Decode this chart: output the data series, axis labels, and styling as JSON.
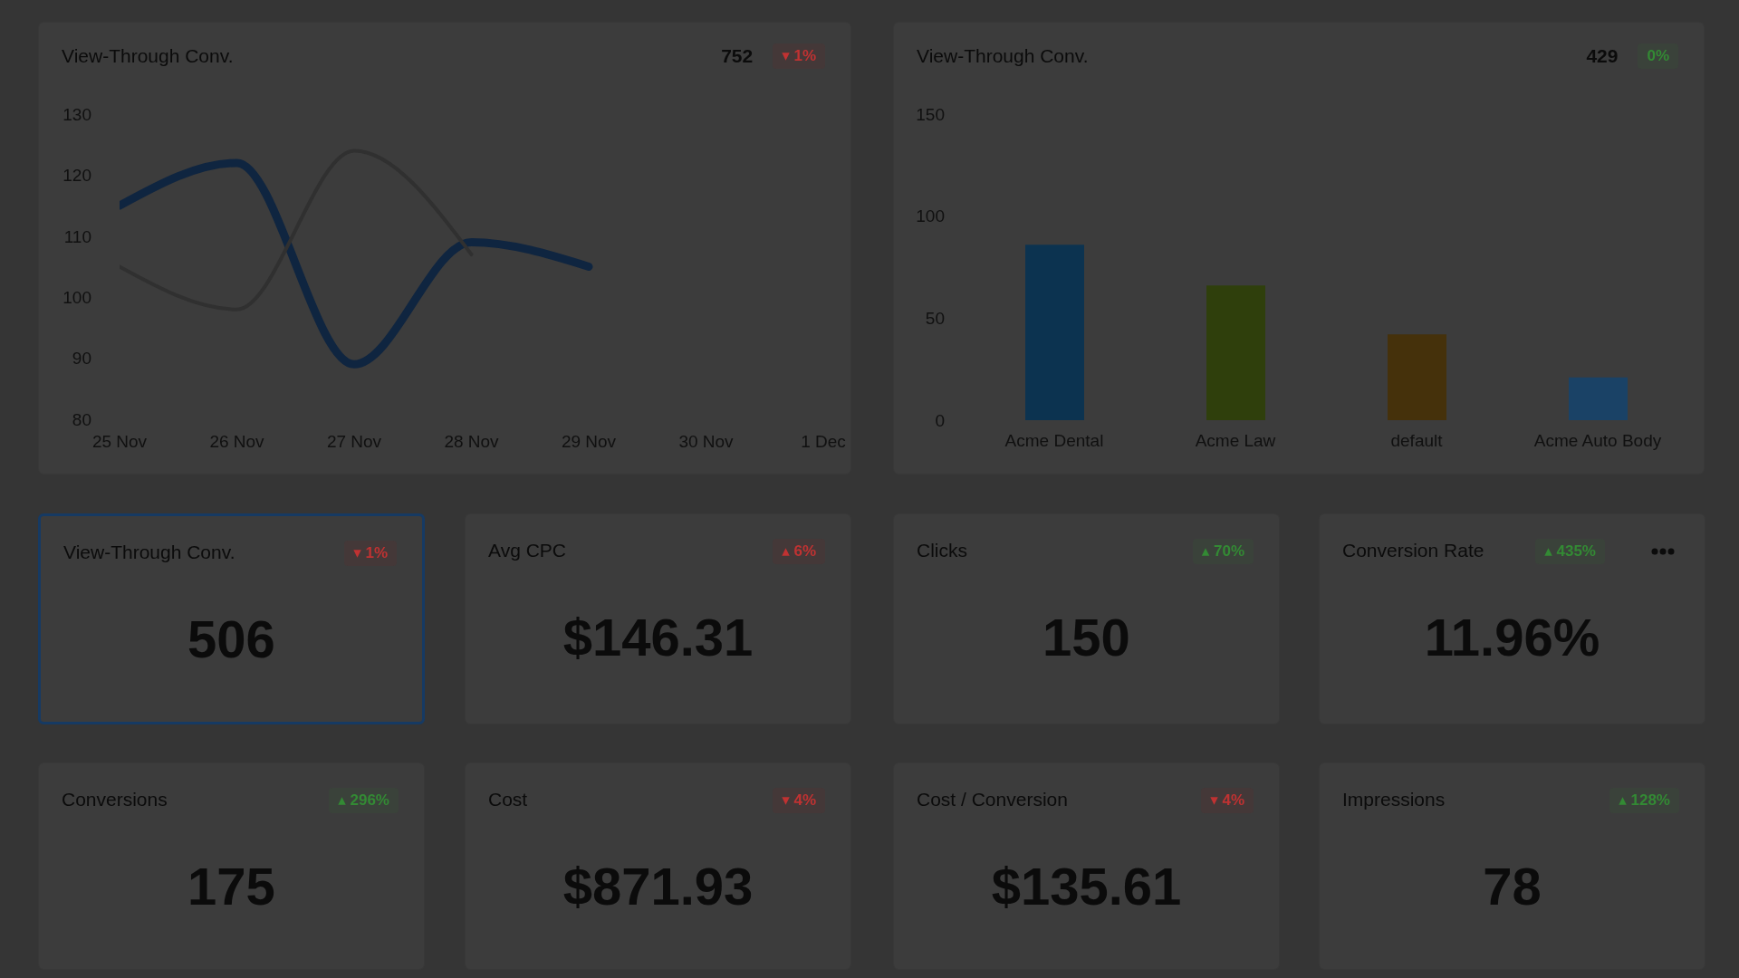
{
  "chart_data": [
    {
      "type": "line",
      "title": "View-Through Conv.",
      "annotations": [
        "752",
        "▾ 1%"
      ],
      "categories": [
        "25 Nov",
        "26 Nov",
        "27 Nov",
        "28 Nov",
        "29 Nov",
        "30 Nov",
        "1 Dec"
      ],
      "series": [
        {
          "color": "#0f2540",
          "values": [
            115,
            122,
            89,
            109,
            105,
            null,
            null
          ]
        },
        {
          "color": "#303030",
          "values": [
            105,
            98,
            124,
            107,
            null,
            null,
            null
          ]
        }
      ],
      "ylim": [
        80,
        130
      ],
      "yticks": [
        80,
        90,
        100,
        110,
        120,
        130
      ],
      "marker": "none"
    },
    {
      "type": "bar",
      "title": "View-Through Conv.",
      "annotations": [
        "429",
        "0%"
      ],
      "categories": [
        "Acme Dental",
        "Acme Law",
        "default",
        "Acme Auto Body"
      ],
      "values": [
        86,
        66,
        42,
        21
      ],
      "colors": [
        "#0c3350",
        "#2f3f0c",
        "#45310b",
        "#1a4266"
      ],
      "ylim": [
        0,
        150
      ],
      "yticks": [
        0,
        50,
        100,
        150
      ]
    },
    {
      "type": "other",
      "title": "View-Through Conv.",
      "annotations": [
        "▾ 1%",
        "506"
      ]
    },
    {
      "type": "other",
      "title": "Avg CPC",
      "annotations": [
        "▴ 6%",
        "$146.31"
      ]
    },
    {
      "type": "other",
      "title": "Clicks",
      "annotations": [
        "▴ 70%",
        "150"
      ]
    },
    {
      "type": "other",
      "title": "Conversion Rate",
      "annotations": [
        "▴ 435%",
        "11.96%"
      ]
    },
    {
      "type": "other",
      "title": "Conversions",
      "annotations": [
        "▴ 296%",
        "175"
      ]
    },
    {
      "type": "other",
      "title": "Cost",
      "annotations": [
        "▾ 4%",
        "$871.93"
      ]
    },
    {
      "type": "other",
      "title": "Cost / Conversion",
      "annotations": [
        "▾ 4%",
        "$135.61"
      ]
    },
    {
      "type": "other",
      "title": "Impressions",
      "annotations": [
        "▴ 128%",
        "78"
      ]
    }
  ]
}
